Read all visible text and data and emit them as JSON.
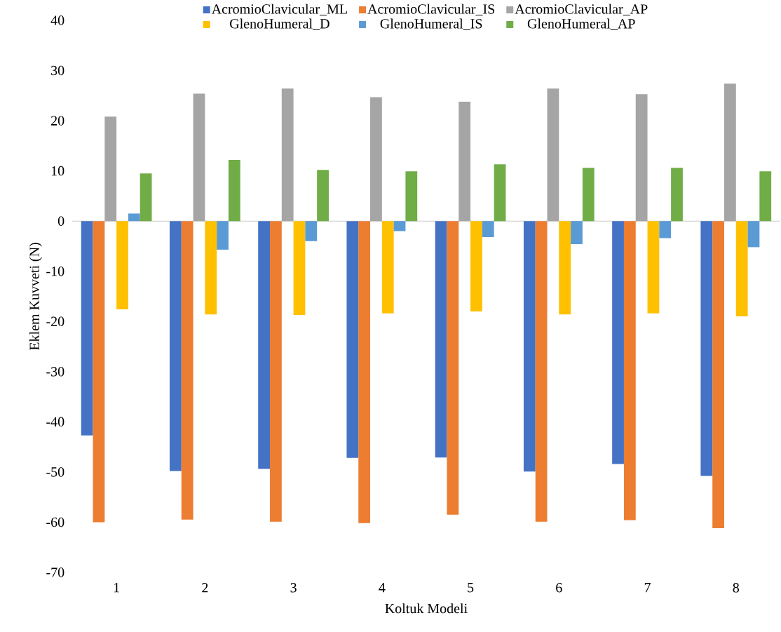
{
  "chart_data": {
    "type": "bar",
    "xlabel": "Koltuk Modeli",
    "ylabel": "Eklem Kuvveti (N)",
    "categories": [
      "1",
      "2",
      "3",
      "4",
      "5",
      "6",
      "7",
      "8"
    ],
    "series": [
      {
        "name": "AcromioClavicular_ML",
        "color": "#4472c4",
        "values": [
          -42.7,
          -49.8,
          -49.4,
          -47.2,
          -47.1,
          -49.9,
          -48.4,
          -50.8
        ]
      },
      {
        "name": "AcromioClavicular_IS",
        "color": "#ed7d31",
        "values": [
          -60.0,
          -59.5,
          -59.9,
          -60.2,
          -58.5,
          -59.9,
          -59.6,
          -61.2
        ]
      },
      {
        "name": "AcromioClavicular_AP",
        "color": "#a5a5a5",
        "values": [
          20.8,
          25.4,
          26.4,
          24.7,
          23.8,
          26.4,
          25.3,
          27.4
        ]
      },
      {
        "name": "GlenoHumeral_D",
        "color": "#ffc000",
        "values": [
          -17.6,
          -18.6,
          -18.7,
          -18.4,
          -18.0,
          -18.6,
          -18.4,
          -19.0
        ]
      },
      {
        "name": "GlenoHumeral_IS",
        "color": "#5b9bd5",
        "values": [
          1.5,
          -5.7,
          -4.0,
          -2.0,
          -3.2,
          -4.6,
          -3.4,
          -5.2
        ]
      },
      {
        "name": "GlenoHumeral_AP",
        "color": "#70ad47",
        "values": [
          9.5,
          12.2,
          10.2,
          9.9,
          11.3,
          10.6,
          10.6,
          9.9
        ]
      }
    ],
    "ylim": [
      -70,
      40
    ],
    "yticks": [
      -70,
      -60,
      -50,
      -40,
      -30,
      -20,
      -10,
      0,
      10,
      20,
      30,
      40
    ],
    "legend": "top"
  }
}
